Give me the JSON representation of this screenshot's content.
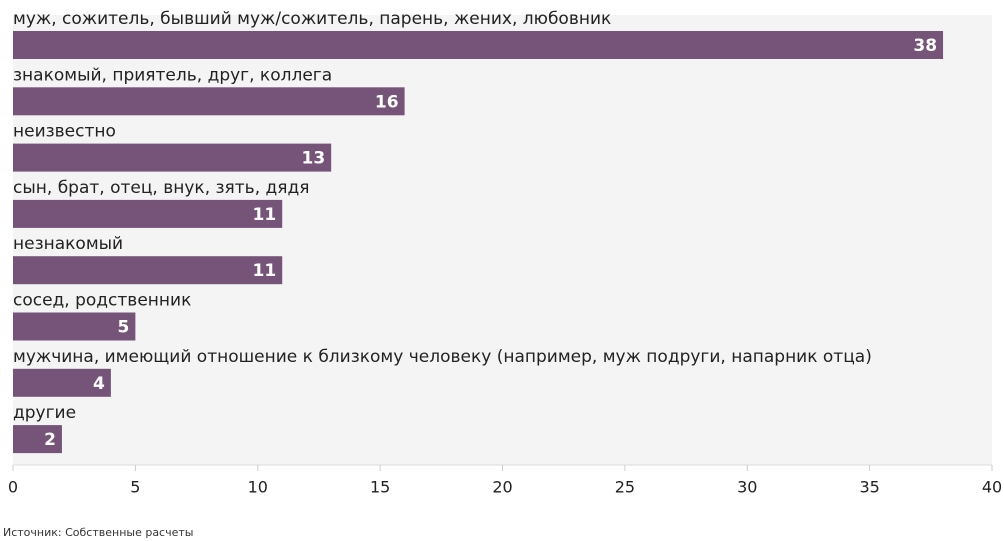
{
  "chart_data": {
    "type": "barh",
    "categories": [
      "муж, сожитель, бывший муж/сожитель, парень, жених, любовник",
      "знакомый, приятель, друг, коллега",
      "неизвестно",
      "сын, брат, отец, внук, зять, дядя",
      "незнакомый",
      "сосед, родственник",
      "мужчина, имеющий отношение к близкому человеку (например, муж подруги, напарник отца)",
      "другие"
    ],
    "values": [
      38,
      16,
      13,
      11,
      11,
      5,
      4,
      2
    ],
    "color": "#76547a",
    "xlim": [
      0,
      40
    ],
    "xticks": [
      0,
      5,
      10,
      15,
      20,
      25,
      30,
      35,
      40
    ],
    "source": "Источник: Собственные расчеты"
  }
}
